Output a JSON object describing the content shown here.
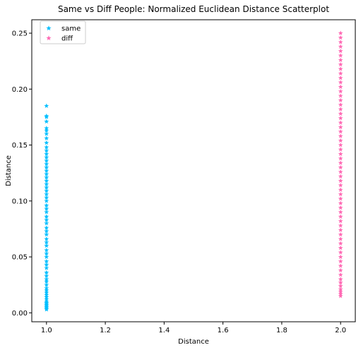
{
  "chart_data": {
    "type": "scatter",
    "title": "Same vs Diff People: Normalized Euclidean Distance Scatterplot",
    "xlabel": "Distance",
    "ylabel": "Distance",
    "xlim": [
      0.95,
      2.05
    ],
    "ylim": [
      -0.008,
      0.262
    ],
    "x_ticks": [
      1.0,
      1.2,
      1.4,
      1.6,
      1.8,
      2.0
    ],
    "x_tick_labels": [
      "1.0",
      "1.2",
      "1.4",
      "1.6",
      "1.8",
      "2.0"
    ],
    "y_ticks": [
      0.0,
      0.05,
      0.1,
      0.15,
      0.2,
      0.25
    ],
    "y_tick_labels": [
      "0.00",
      "0.05",
      "0.10",
      "0.15",
      "0.20",
      "0.25"
    ],
    "grid": false,
    "legend": "top-left",
    "series": [
      {
        "name": "same",
        "marker": "star",
        "color": "#00BFFF",
        "x_value": 1.0,
        "y_values": [
          0.003,
          0.004,
          0.005,
          0.006,
          0.007,
          0.008,
          0.009,
          0.01,
          0.012,
          0.014,
          0.016,
          0.018,
          0.02,
          0.022,
          0.025,
          0.028,
          0.03,
          0.033,
          0.036,
          0.04,
          0.043,
          0.046,
          0.05,
          0.053,
          0.056,
          0.06,
          0.063,
          0.066,
          0.07,
          0.073,
          0.076,
          0.08,
          0.083,
          0.086,
          0.09,
          0.093,
          0.096,
          0.1,
          0.103,
          0.106,
          0.109,
          0.112,
          0.115,
          0.118,
          0.121,
          0.124,
          0.127,
          0.13,
          0.133,
          0.136,
          0.139,
          0.142,
          0.145,
          0.148,
          0.152,
          0.156,
          0.16,
          0.163,
          0.165,
          0.171,
          0.175,
          0.176,
          0.185
        ]
      },
      {
        "name": "diff",
        "marker": "star",
        "color": "#FF69B4",
        "x_value": 2.0,
        "y_values": [
          0.015,
          0.017,
          0.019,
          0.021,
          0.024,
          0.027,
          0.03,
          0.034,
          0.038,
          0.042,
          0.046,
          0.05,
          0.054,
          0.058,
          0.062,
          0.066,
          0.07,
          0.074,
          0.078,
          0.082,
          0.086,
          0.09,
          0.094,
          0.098,
          0.102,
          0.106,
          0.11,
          0.114,
          0.118,
          0.122,
          0.126,
          0.13,
          0.134,
          0.138,
          0.142,
          0.146,
          0.15,
          0.154,
          0.158,
          0.162,
          0.166,
          0.17,
          0.174,
          0.178,
          0.182,
          0.186,
          0.19,
          0.194,
          0.198,
          0.202,
          0.206,
          0.21,
          0.214,
          0.218,
          0.222,
          0.226,
          0.23,
          0.234,
          0.238,
          0.242,
          0.246,
          0.25
        ]
      }
    ]
  }
}
